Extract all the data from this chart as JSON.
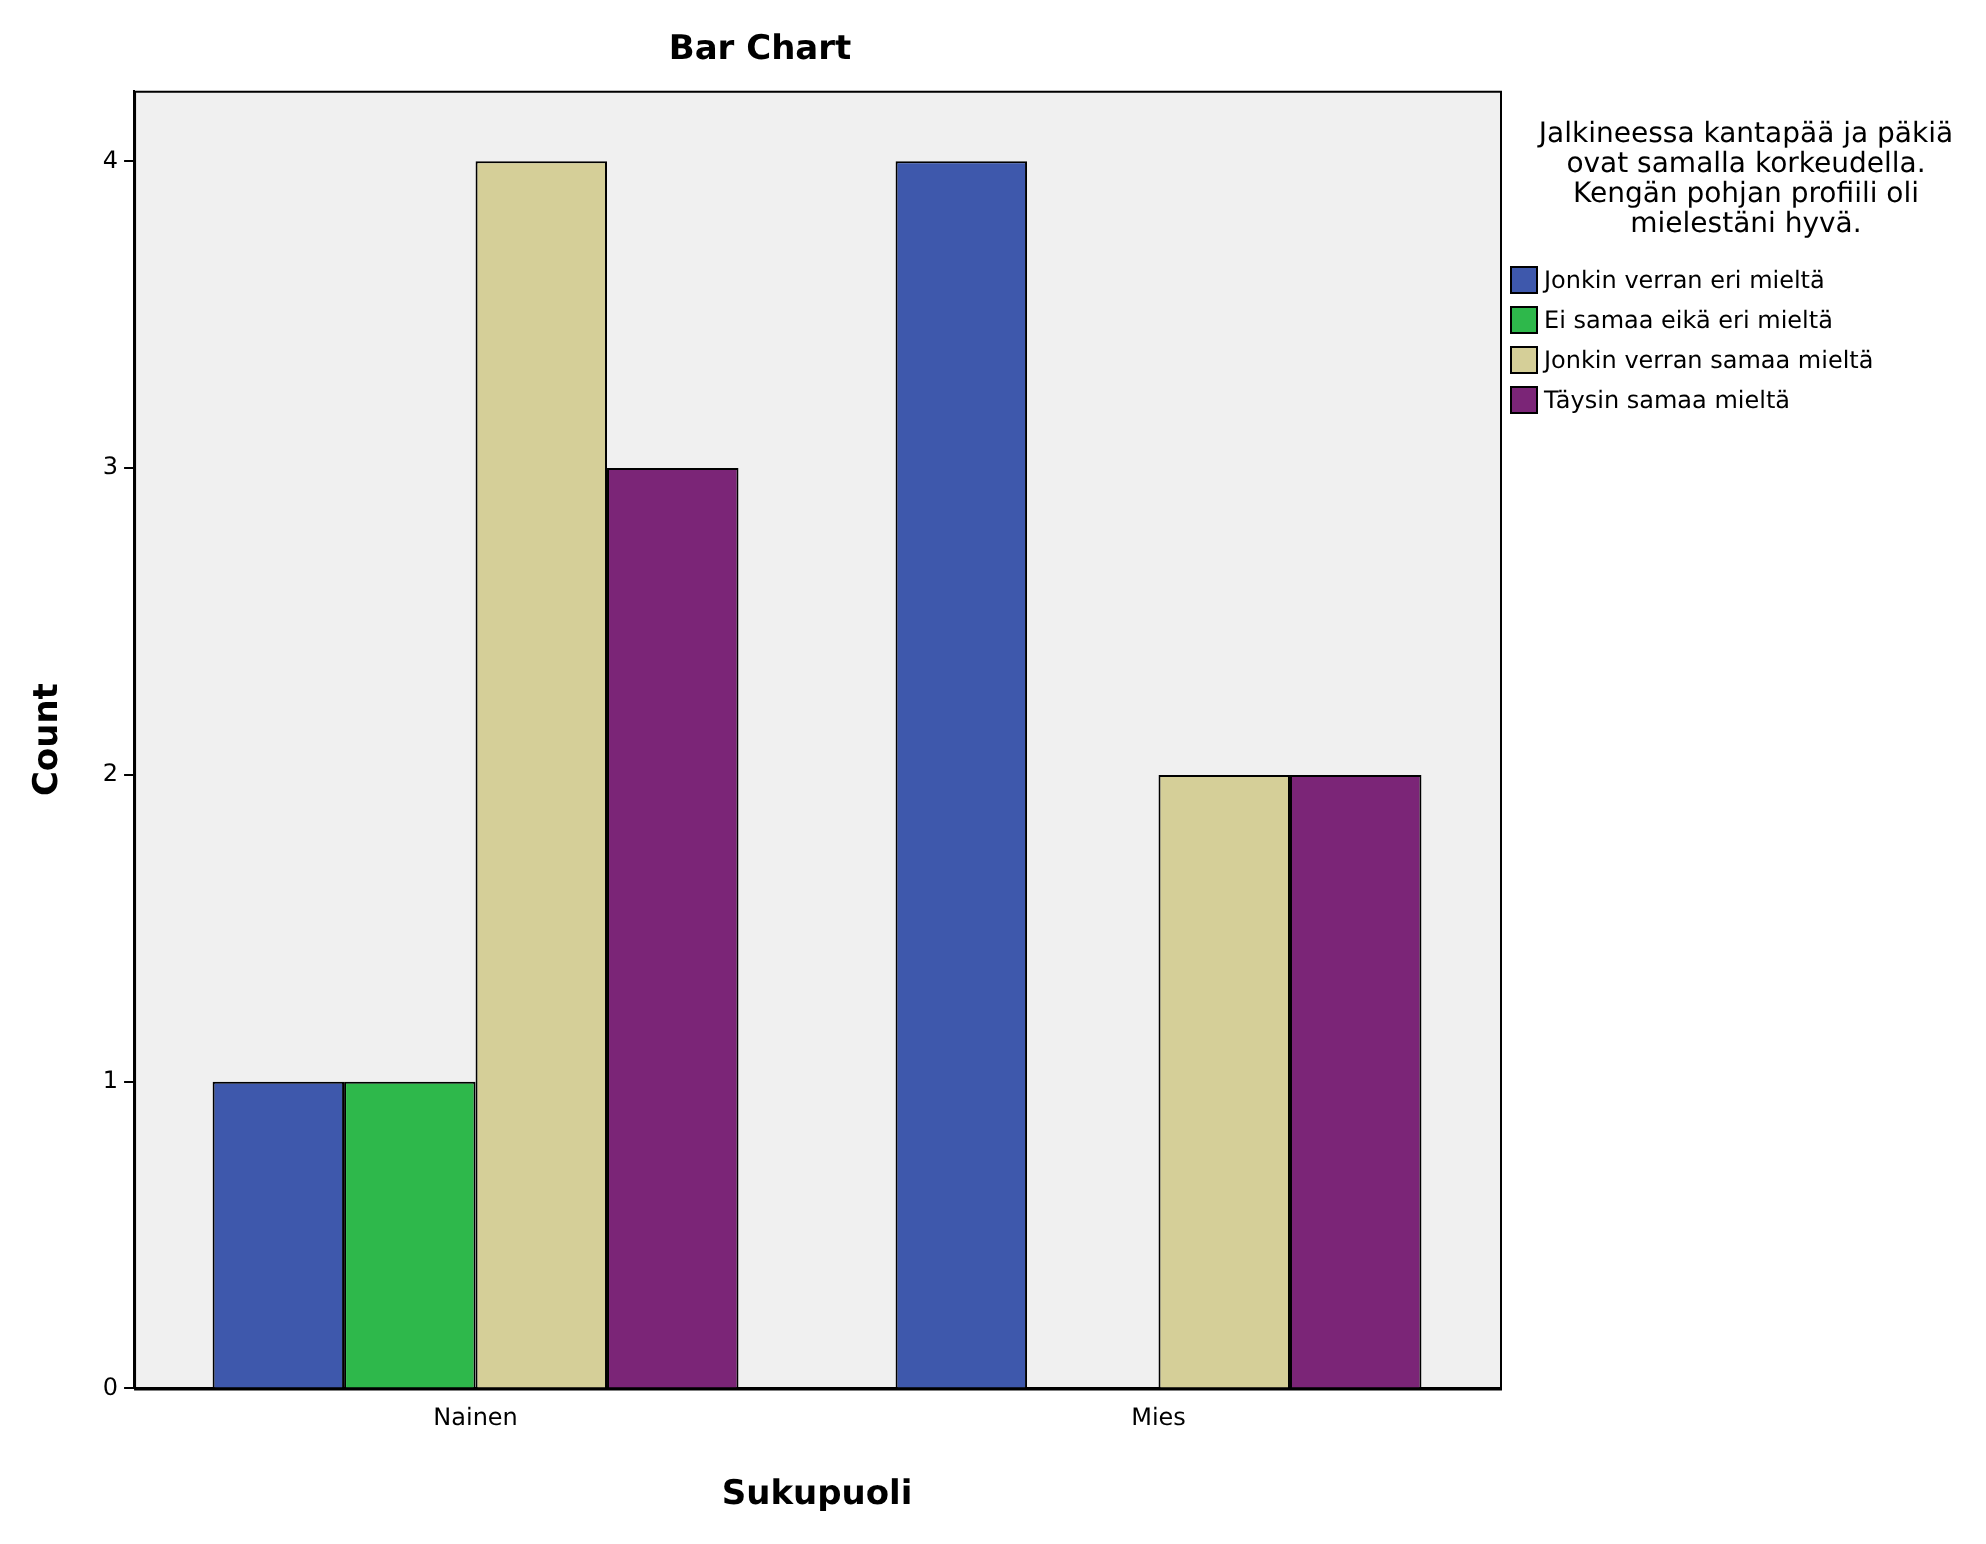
{
  "chart_data": {
    "type": "bar",
    "title": "Bar Chart",
    "xlabel": "Sukupuoli",
    "ylabel": "Count",
    "legend_title": "Jalkineessa kantapää ja päkiä ovat samalla korkeudella. Kengän pohjan profiili oli mielestäni hyvä.",
    "categories": [
      "Nainen",
      "Mies"
    ],
    "series": [
      {
        "name": "Jonkin verran eri mieltä",
        "color": "#3e58ac",
        "values": [
          1,
          4
        ]
      },
      {
        "name": "Ei samaa eikä eri mieltä",
        "color": "#2eb84b",
        "values": [
          1,
          0
        ]
      },
      {
        "name": "Jonkin verran samaa mieltä",
        "color": "#d5cf98",
        "values": [
          4,
          2
        ]
      },
      {
        "name": "Täysin samaa mieltä",
        "color": "#7b2577",
        "values": [
          3,
          2
        ]
      }
    ],
    "ylim": [
      0,
      4.23
    ],
    "yticks": [
      0,
      1,
      2,
      3,
      4
    ],
    "grid": false,
    "legend": "right"
  }
}
